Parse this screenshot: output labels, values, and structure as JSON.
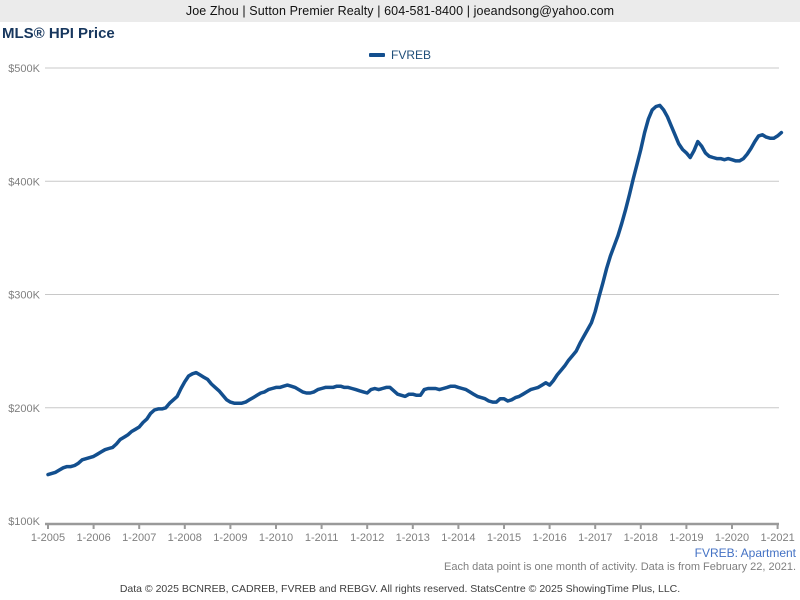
{
  "header": {
    "contact_line": "Joe Zhou | Sutton Premier Realty | 604-581-8400 | joeandsong@yahoo.com"
  },
  "title": "MLS® HPI Price",
  "legend": {
    "label": "FVREB"
  },
  "footnotes": {
    "series_note": "FVREB: Apartment",
    "data_note": "Each data point is one month of activity. Data is from February 22, 2021.",
    "copyright": "Data © 2025 BCNREB, CADREB, FVREB and REBGV. All rights reserved. StatsCentre © 2025 ShowingTime Plus, LLC."
  },
  "colors": {
    "line": "#134f8e",
    "title_text": "#17375e",
    "legend_text": "#1f4e79",
    "series_note_text": "#4472c4",
    "axis_text": "#7f7f7f",
    "gridline": "#c8c8c8",
    "axis_line": "#9a9a9a",
    "header_bar_bg": "#ebebeb"
  },
  "chart_data": {
    "type": "line",
    "title": "MLS® HPI Price",
    "legend_entries": [
      "FVREB"
    ],
    "legend_position": "top-center",
    "grid": "horizontal-only",
    "x_unit": "month",
    "x_range": [
      "2005-01",
      "2021-02"
    ],
    "x_tick_labels": [
      "1-2005",
      "1-2006",
      "1-2007",
      "1-2008",
      "1-2009",
      "1-2010",
      "1-2011",
      "1-2012",
      "1-2013",
      "1-2014",
      "1-2015",
      "1-2016",
      "1-2017",
      "1-2018",
      "1-2019",
      "1-2020",
      "1-2021"
    ],
    "y_tick_values": [
      100,
      200,
      300,
      400,
      500
    ],
    "y_tick_labels": [
      "$100K",
      "$200K",
      "$300K",
      "$400K",
      "$500K"
    ],
    "ylim_thousands": [
      100,
      500
    ],
    "values_unit": "thousand CAD",
    "series": [
      {
        "name": "FVREB",
        "start_month": "2005-01",
        "values_thousands": [
          141,
          142,
          143,
          145,
          147,
          148,
          148,
          149,
          151,
          154,
          155,
          156,
          157,
          159,
          161,
          163,
          164,
          165,
          168,
          172,
          174,
          176,
          179,
          181,
          183,
          187,
          190,
          195,
          198,
          199,
          199,
          200,
          204,
          207,
          210,
          217,
          223,
          228,
          230,
          231,
          229,
          227,
          225,
          221,
          218,
          215,
          211,
          207,
          205,
          204,
          204,
          204,
          205,
          207,
          209,
          211,
          213,
          214,
          216,
          217,
          218,
          218,
          219,
          220,
          219,
          218,
          216,
          214,
          213,
          213,
          214,
          216,
          217,
          218,
          218,
          218,
          219,
          219,
          218,
          218,
          217,
          216,
          215,
          214,
          213,
          216,
          217,
          216,
          217,
          218,
          218,
          215,
          212,
          211,
          210,
          212,
          212,
          211,
          211,
          216,
          217,
          217,
          217,
          216,
          217,
          218,
          219,
          219,
          218,
          217,
          216,
          214,
          212,
          210,
          209,
          208,
          206,
          205,
          205,
          208,
          208,
          206,
          207,
          209,
          210,
          212,
          214,
          216,
          217,
          218,
          220,
          222,
          220,
          224,
          229,
          233,
          237,
          242,
          246,
          250,
          257,
          263,
          269,
          275,
          285,
          298,
          310,
          323,
          334,
          343,
          352,
          363,
          375,
          388,
          402,
          415,
          428,
          443,
          455,
          463,
          466,
          467,
          463,
          457,
          449,
          441,
          433,
          428,
          425,
          421,
          427,
          435,
          431,
          425,
          422,
          421,
          420,
          420,
          419,
          420,
          419,
          418,
          418,
          420,
          424,
          429,
          435,
          440,
          441,
          439,
          438,
          438,
          440,
          443
        ]
      }
    ]
  }
}
